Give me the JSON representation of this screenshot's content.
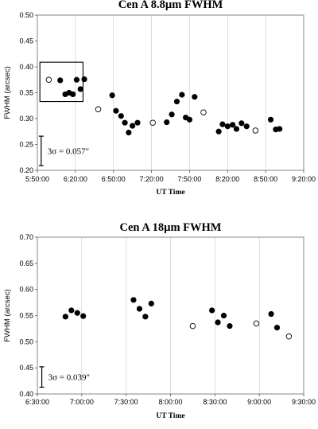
{
  "chart_data": [
    {
      "type": "scatter",
      "title": "Cen A 8.8µm FWHM",
      "xlabel": "UT Time",
      "ylabel": "FWHM (arcsec)",
      "xlim": [
        "5:50:00",
        "9:20:00"
      ],
      "ylim": [
        0.2,
        0.5
      ],
      "x_ticks": [
        "5:50:00",
        "6:20:00",
        "6:50:00",
        "7:20:00",
        "7:50:00",
        "8:20:00",
        "8:50:00",
        "9:20:00"
      ],
      "y_ticks": [
        "0.20",
        "0.25",
        "0.30",
        "0.35",
        "0.40",
        "0.45",
        "0.50"
      ],
      "grid": "vertical",
      "annotation": "3σ = 0.057″",
      "error_bar": {
        "x": "5:53:00",
        "y_center": 0.2375,
        "half": 0.0285
      },
      "box": {
        "x": [
          "5:52:00",
          "6:26:00"
        ],
        "y": [
          0.333,
          0.409
        ]
      },
      "series": [
        {
          "marker": "filled",
          "points": [
            [
              "6:08:00",
              0.374
            ],
            [
              "6:12:00",
              0.347
            ],
            [
              "6:15:00",
              0.35
            ],
            [
              "6:18:00",
              0.347
            ],
            [
              "6:21:00",
              0.375
            ],
            [
              "6:24:00",
              0.357
            ],
            [
              "6:27:00",
              0.376
            ],
            [
              "6:49:00",
              0.345
            ],
            [
              "6:52:00",
              0.315
            ],
            [
              "6:56:00",
              0.305
            ],
            [
              "6:59:00",
              0.292
            ],
            [
              "7:02:00",
              0.273
            ],
            [
              "7:05:00",
              0.286
            ],
            [
              "7:09:00",
              0.292
            ],
            [
              "7:32:00",
              0.293
            ],
            [
              "7:36:00",
              0.308
            ],
            [
              "7:40:00",
              0.333
            ],
            [
              "7:44:00",
              0.346
            ],
            [
              "7:47:00",
              0.302
            ],
            [
              "7:50:00",
              0.298
            ],
            [
              "7:54:00",
              0.342
            ],
            [
              "8:13:00",
              0.275
            ],
            [
              "8:16:00",
              0.289
            ],
            [
              "8:20:00",
              0.285
            ],
            [
              "8:24:00",
              0.288
            ],
            [
              "8:27:00",
              0.28
            ],
            [
              "8:31:00",
              0.291
            ],
            [
              "8:35:00",
              0.285
            ],
            [
              "8:54:00",
              0.298
            ],
            [
              "8:58:00",
              0.279
            ],
            [
              "9:01:00",
              0.28
            ]
          ]
        },
        {
          "marker": "open",
          "points": [
            [
              "5:59:00",
              0.375
            ],
            [
              "6:38:00",
              0.318
            ],
            [
              "7:21:00",
              0.292
            ],
            [
              "8:01:00",
              0.312
            ],
            [
              "8:42:00",
              0.277
            ]
          ]
        }
      ]
    },
    {
      "type": "scatter",
      "title": "Cen A 18µm FWHM",
      "xlabel": "UT Time",
      "ylabel": "FWHM (arcsec)",
      "xlim": [
        "6:30:00",
        "9:30:00"
      ],
      "ylim": [
        0.4,
        0.7
      ],
      "x_ticks": [
        "6:30:00",
        "7:00:00",
        "7:30:00",
        "8:00:00",
        "8:30:00",
        "9:00:00",
        "9:30:00"
      ],
      "y_ticks": [
        "0.40",
        "0.45",
        "0.50",
        "0.55",
        "0.60",
        "0.65",
        "0.70"
      ],
      "grid": "vertical",
      "annotation": "3σ = 0.039″",
      "error_bar": {
        "x": "6:33:00",
        "y_center": 0.4325,
        "half": 0.0195
      },
      "series": [
        {
          "marker": "filled",
          "points": [
            [
              "6:49:00",
              0.548
            ],
            [
              "6:53:00",
              0.56
            ],
            [
              "6:57:00",
              0.555
            ],
            [
              "7:01:00",
              0.549
            ],
            [
              "7:35:00",
              0.58
            ],
            [
              "7:39:00",
              0.563
            ],
            [
              "7:43:00",
              0.548
            ],
            [
              "7:47:00",
              0.573
            ],
            [
              "8:28:00",
              0.56
            ],
            [
              "8:32:00",
              0.537
            ],
            [
              "8:36:00",
              0.55
            ],
            [
              "8:40:00",
              0.53
            ],
            [
              "9:08:00",
              0.553
            ],
            [
              "9:12:00",
              0.527
            ]
          ]
        },
        {
          "marker": "open",
          "points": [
            [
              "8:15:00",
              0.53
            ],
            [
              "8:58:00",
              0.535
            ],
            [
              "9:20:00",
              0.51
            ]
          ]
        }
      ]
    }
  ]
}
